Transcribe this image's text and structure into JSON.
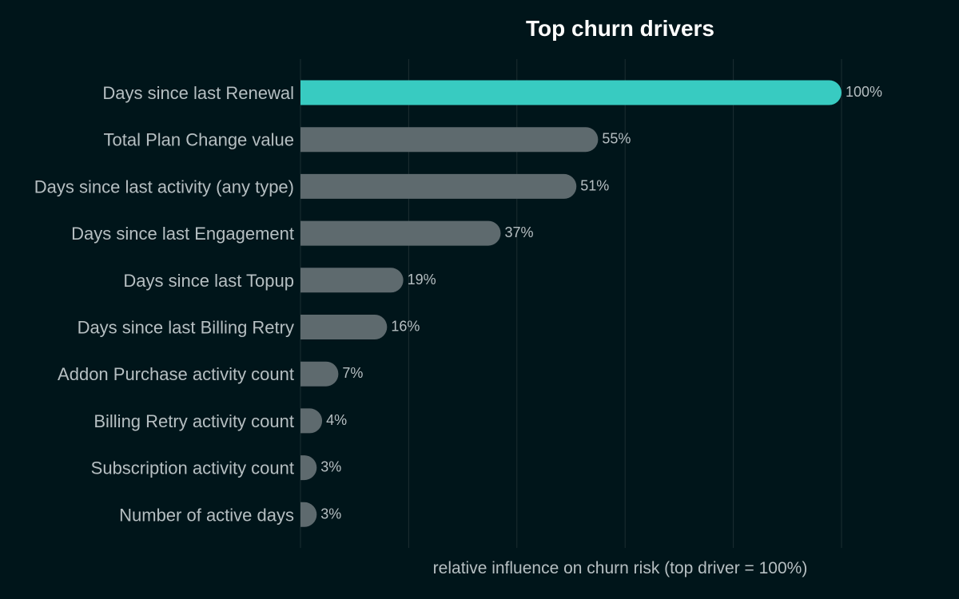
{
  "chart_data": {
    "type": "bar",
    "orientation": "horizontal",
    "title": "Top churn drivers",
    "xlabel": "relative influence on churn risk (top driver = 100%)",
    "ylabel": "",
    "xlim": [
      0,
      100
    ],
    "grid": true,
    "categories": [
      "Days since last Renewal",
      "Total Plan Change value",
      "Days since last activity (any type)",
      "Days since last Engagement",
      "Days since last Topup",
      "Days since last Billing Retry",
      "Addon Purchase activity count",
      "Billing Retry activity count",
      "Subscription activity count",
      "Number of active days"
    ],
    "values": [
      100,
      55,
      51,
      37,
      19,
      16,
      7,
      4,
      3,
      3
    ],
    "value_labels": [
      "100%",
      "55%",
      "51%",
      "37%",
      "19%",
      "16%",
      "7%",
      "4%",
      "3%",
      "3%"
    ],
    "highlight_index": 0
  },
  "colors": {
    "background": "#00151a",
    "highlight_bar": "#38cbc1",
    "bar": "#5e6a6e",
    "title": "#ffffff",
    "category_text": "#b6bfc2",
    "value_text": "#b6bfc2",
    "axis_text": "#b6bfc2",
    "grid": "#1d2e32"
  }
}
